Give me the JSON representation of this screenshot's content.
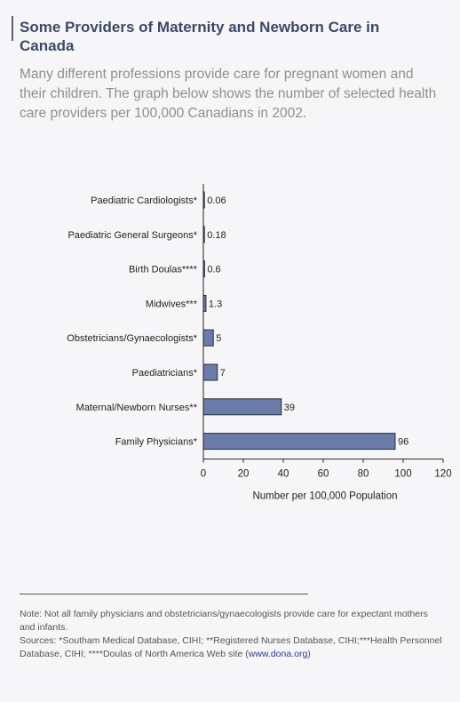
{
  "title": "Some Providers of Maternity and Newborn Care in Canada",
  "subtitle": "Many different professions provide care for pregnant women and their children. The graph below shows the number of selected health care providers per 100,000 Canadians in 2002.",
  "notes": {
    "note": "Note: Not all family physicians and obstetricians/gynaecologists provide care for expectant mothers and infants.",
    "sources": "Sources: *Southam Medical Database, CIHI; **Registered Nurses Database, CIHI;***Health Personnel Database, CIHI; ****Doulas of North America Web site (",
    "link": "www.dona.org",
    "sources_end": ")"
  },
  "colors": {
    "bar_fill": "#6c7ca8",
    "bar_stroke": "#2b2f3a",
    "axis": "#222222",
    "title": "#3b4a68"
  },
  "chart_data": {
    "type": "bar",
    "orientation": "horizontal",
    "categories": [
      "Paediatric Cardiologists*",
      "Paediatric General Surgeons*",
      "Birth Doulas****",
      "Midwives***",
      "Obstetricians/Gynaecologists*",
      "Paediatricians*",
      "Maternal/Newborn Nurses**",
      "Family Physicians*"
    ],
    "values": [
      0.06,
      0.18,
      0.6,
      1.3,
      5,
      7,
      39,
      96
    ],
    "value_labels": [
      "0.06",
      "0.18",
      "0.6",
      "1.3",
      "5",
      "7",
      "39",
      "96"
    ],
    "xlabel": "Number per 100,000 Population",
    "ylabel": "",
    "xlim": [
      0,
      120
    ],
    "xticks": [
      0,
      20,
      40,
      60,
      80,
      100,
      120
    ],
    "grid": false,
    "legend": "none"
  }
}
